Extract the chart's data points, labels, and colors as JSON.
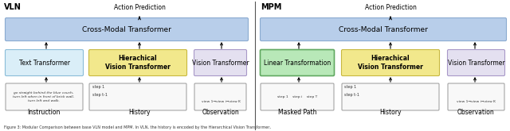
{
  "bg_color": "#ffffff",
  "fig_width": 6.4,
  "fig_height": 1.65,
  "dpi": 100,
  "vln_label": "VLN",
  "mpm_label": "MPM",
  "action_pred_label": "Action Prediction",
  "cross_modal_label": "Cross-Modal Transformer",
  "cross_modal_color": "#b8ceea",
  "cross_modal_edge": "#8aaad0",
  "text_transformer_label": "Text Transformer",
  "text_transformer_color": "#daeef8",
  "text_transformer_edge": "#8abcd8",
  "hierarchical_label": "Hierachical\nVision Transformer",
  "hierarchical_color": "#f2e88c",
  "hierarchical_edge": "#c8b840",
  "vision_transformer_label": "Vision Transformer",
  "vision_transformer_color": "#e4e0f0",
  "vision_transformer_edge": "#a898c8",
  "linear_transform_label": "Linear Transformation",
  "linear_transform_color": "#b8e8b8",
  "linear_transform_edge": "#60a860",
  "instruction_label": "Instruction",
  "history_label": "History",
  "observation_label": "Observation",
  "masked_path_label": "Masked Path",
  "history2_label": "History",
  "observation2_label": "Observation",
  "footnote": "Figure 3: Modular Comparison between base VLN model and MPM. In VLN, the history is encoded by the Hierarchical Vision Transformer,",
  "instr_text": "go straight behind the blue couch,\nturn left when in front of brick wall,\nturn left and walk.",
  "history_step1": "step 1",
  "history_stepm1": "step t-1",
  "obs_text": "view 1→view i→view K",
  "masked_step_text": "step 1    step i    step T",
  "mpm_obs_text": "view 1→view i→view K"
}
